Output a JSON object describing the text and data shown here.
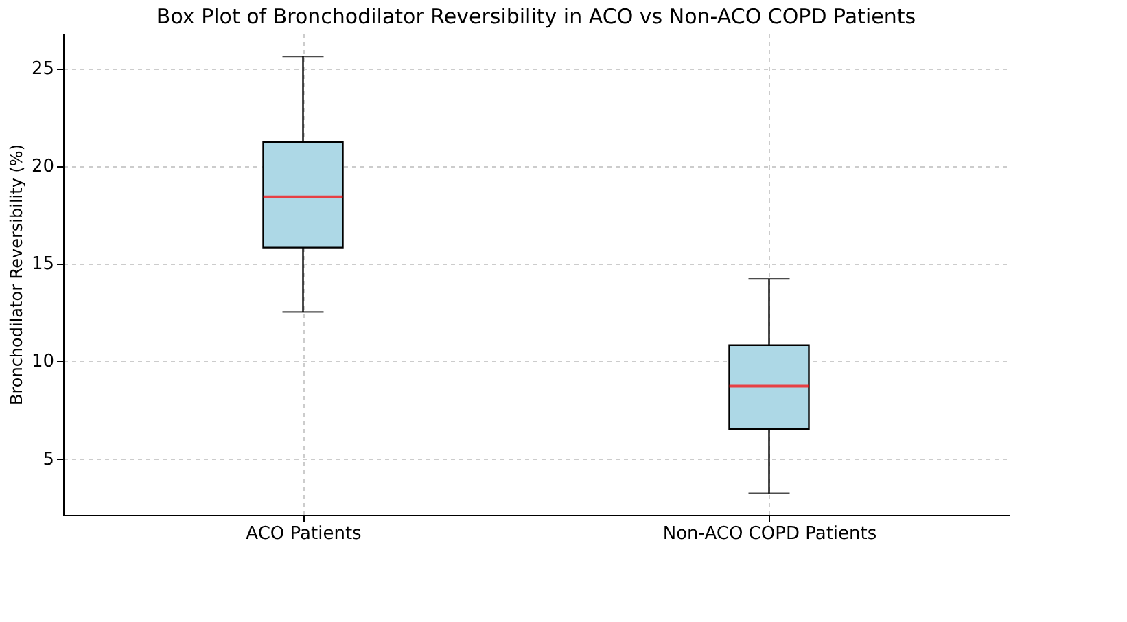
{
  "chart_data": {
    "type": "box",
    "title": "Box Plot of Bronchodilator Reversibility in ACO vs Non-ACO COPD Patients",
    "ylabel": "Bronchodilator Reversibility (%)",
    "categories": [
      "ACO Patients",
      "Non-ACO COPD Patients"
    ],
    "color": "#add8e6",
    "boxes": [
      {
        "low": 12.5,
        "q1": 15.8,
        "median": 18.4,
        "q3": 21.2,
        "high": 25.6
      },
      {
        "low": 3.2,
        "q1": 6.5,
        "median": 8.7,
        "q3": 10.8,
        "high": 14.2
      }
    ],
    "ylim": [
      2.1,
      26.8
    ],
    "yticks": [
      5,
      10,
      15,
      20,
      25
    ],
    "grid": true
  }
}
